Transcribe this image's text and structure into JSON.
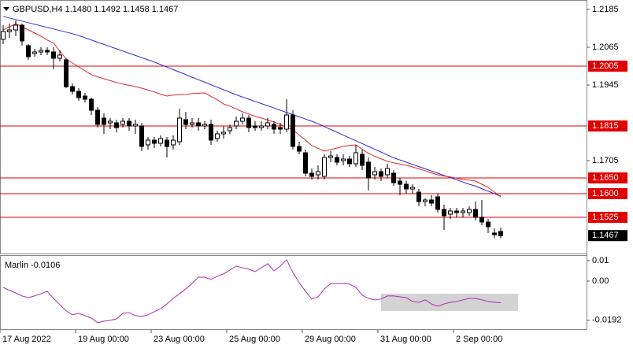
{
  "chart_data": [
    {
      "type": "candlestick",
      "title": "GBPUSD,H4  1.1480 1.1492 1.1458 1.1467",
      "categories": [
        "17 Aug 2022",
        null,
        null,
        null,
        null,
        null,
        null,
        null,
        null,
        null,
        null,
        null,
        "19 Aug 00:00",
        null,
        null,
        null,
        null,
        null,
        null,
        null,
        null,
        null,
        null,
        null,
        "23 Aug 00:00",
        null,
        null,
        null,
        null,
        null,
        null,
        null,
        null,
        null,
        null,
        null,
        "25 Aug 00:00",
        null,
        null,
        null,
        null,
        null,
        null,
        null,
        null,
        null,
        null,
        null,
        "29 Aug 00:00",
        null,
        null,
        null,
        null,
        null,
        null,
        null,
        null,
        null,
        null,
        null,
        "31 Aug 00:00",
        null,
        null,
        null,
        null,
        null,
        null,
        null,
        null,
        null,
        null,
        null,
        "2 Sep 00:00",
        null,
        null,
        null,
        null,
        null,
        null,
        null
      ],
      "open": [
        1.209,
        1.2115,
        1.212,
        1.2135,
        1.207,
        1.2045,
        1.205,
        1.2055,
        1.205,
        1.203,
        1.2025,
        1.194,
        1.1925,
        1.191,
        1.19,
        1.1865,
        1.184,
        1.1825,
        1.1825,
        1.182,
        1.183,
        1.1815,
        1.1815,
        1.1755,
        1.177,
        1.176,
        1.177,
        1.1755,
        1.1765,
        1.1835,
        1.182,
        1.1825,
        1.1815,
        1.182,
        1.1775,
        1.179,
        1.18,
        1.1815,
        1.183,
        1.184,
        1.1815,
        1.181,
        1.1815,
        1.182,
        1.181,
        1.1805,
        1.185,
        1.175,
        1.173,
        1.1665,
        1.166,
        1.1655,
        1.1715,
        1.1715,
        1.1705,
        1.171,
        1.1695,
        1.1725,
        1.17,
        1.166,
        1.167,
        1.166,
        1.1665,
        1.164,
        1.163,
        1.1615,
        1.1605,
        1.1575,
        1.158,
        1.159,
        1.155,
        1.1535,
        1.1545,
        1.154,
        1.154,
        1.155,
        1.1525,
        1.151,
        1.1475,
        1.148
      ],
      "high": [
        1.2135,
        1.214,
        1.215,
        1.214,
        1.2075,
        1.206,
        1.2065,
        1.2065,
        1.2065,
        1.2055,
        1.203,
        1.195,
        1.1935,
        1.192,
        1.1905,
        1.1875,
        1.1855,
        1.184,
        1.1835,
        1.184,
        1.184,
        1.1835,
        1.1825,
        1.178,
        1.178,
        1.1785,
        1.178,
        1.1785,
        1.187,
        1.186,
        1.184,
        1.184,
        1.183,
        1.1835,
        1.18,
        1.1815,
        1.182,
        1.1845,
        1.1855,
        1.185,
        1.183,
        1.183,
        1.184,
        1.183,
        1.1825,
        1.19,
        1.1865,
        1.1765,
        1.174,
        1.168,
        1.169,
        1.1725,
        1.1735,
        1.1725,
        1.1725,
        1.172,
        1.1755,
        1.174,
        1.1715,
        1.1685,
        1.168,
        1.1695,
        1.1675,
        1.165,
        1.164,
        1.163,
        1.1615,
        1.1585,
        1.1595,
        1.16,
        1.1565,
        1.1555,
        1.1555,
        1.1555,
        1.156,
        1.1575,
        1.158,
        1.152,
        1.149,
        1.1492
      ],
      "low": [
        1.2075,
        1.2095,
        1.21,
        1.207,
        1.2025,
        1.2035,
        1.204,
        1.204,
        1.1995,
        1.202,
        1.1935,
        1.1915,
        1.1895,
        1.189,
        1.185,
        1.181,
        1.179,
        1.1805,
        1.1795,
        1.181,
        1.18,
        1.179,
        1.1735,
        1.174,
        1.1745,
        1.175,
        1.1715,
        1.174,
        1.1755,
        1.1805,
        1.181,
        1.18,
        1.1805,
        1.1755,
        1.1765,
        1.1775,
        1.179,
        1.1805,
        1.182,
        1.1795,
        1.18,
        1.18,
        1.1805,
        1.179,
        1.179,
        1.1795,
        1.174,
        1.1725,
        1.1655,
        1.1645,
        1.1645,
        1.1645,
        1.17,
        1.169,
        1.169,
        1.1685,
        1.1685,
        1.1675,
        1.161,
        1.1645,
        1.164,
        1.165,
        1.1625,
        1.1595,
        1.16,
        1.16,
        1.156,
        1.156,
        1.156,
        1.154,
        1.1485,
        1.152,
        1.1525,
        1.1525,
        1.153,
        1.1515,
        1.15,
        1.1475,
        1.146,
        1.1458
      ],
      "close": [
        1.2115,
        1.212,
        1.2135,
        1.2085,
        1.2035,
        1.205,
        1.2055,
        1.205,
        1.203,
        1.204,
        1.194,
        1.1925,
        1.1905,
        1.19,
        1.1865,
        1.182,
        1.182,
        1.183,
        1.181,
        1.183,
        1.1815,
        1.182,
        1.175,
        1.177,
        1.176,
        1.1775,
        1.175,
        1.177,
        1.184,
        1.182,
        1.1825,
        1.1815,
        1.182,
        1.177,
        1.179,
        1.1795,
        1.181,
        1.183,
        1.184,
        1.181,
        1.181,
        1.1815,
        1.1825,
        1.1805,
        1.1805,
        1.185,
        1.175,
        1.1735,
        1.1665,
        1.1655,
        1.167,
        1.1715,
        1.172,
        1.17,
        1.171,
        1.1695,
        1.173,
        1.169,
        1.165,
        1.167,
        1.1655,
        1.168,
        1.1635,
        1.163,
        1.1615,
        1.162,
        1.1575,
        1.158,
        1.157,
        1.155,
        1.153,
        1.1545,
        1.154,
        1.1545,
        1.155,
        1.1525,
        1.151,
        1.1495,
        1.147,
        1.1467
      ],
      "series": [
        {
          "color": "#2a2ad6",
          "values": [
            1.2163,
            1.2158,
            1.2153,
            1.2148,
            1.2143,
            1.2138,
            1.2133,
            1.2128,
            1.2123,
            1.2118,
            1.2113,
            1.2108,
            1.2102,
            1.2095,
            1.2088,
            1.2081,
            1.2074,
            1.2067,
            1.206,
            1.2053,
            1.2046,
            1.2039,
            1.2032,
            1.2025,
            1.2018,
            1.201,
            1.2002,
            1.1994,
            1.1986,
            1.1978,
            1.197,
            1.1962,
            1.1954,
            1.1946,
            1.1938,
            1.193,
            1.1922,
            1.1914,
            1.1907,
            1.19,
            1.1893,
            1.1886,
            1.1879,
            1.1872,
            1.1865,
            1.1858,
            1.1851,
            1.1844,
            1.1837,
            1.183,
            1.1822,
            1.1813,
            1.1804,
            1.1795,
            1.1786,
            1.1777,
            1.1768,
            1.1759,
            1.175,
            1.1741,
            1.1732,
            1.1723,
            1.1714,
            1.1707,
            1.17,
            1.1693,
            1.1686,
            1.1679,
            1.1672,
            1.1665,
            1.1658,
            1.1651,
            1.1644,
            1.1637,
            1.163,
            1.1624,
            1.1616,
            1.1608,
            1.16,
            1.1592
          ]
        },
        {
          "color": "#e02828",
          "values": [
            1.212,
            1.213,
            1.214,
            1.213,
            1.212,
            1.211,
            1.21,
            1.2088,
            1.2078,
            1.2053,
            1.2028,
            1.2015,
            1.2003,
            1.199,
            1.1978,
            1.1971,
            1.1965,
            1.1959,
            1.1953,
            1.1948,
            1.1944,
            1.194,
            1.1935,
            1.1929,
            1.1923,
            1.1916,
            1.191,
            1.1913,
            1.1914,
            1.1915,
            1.1918,
            1.1919,
            1.192,
            1.1909,
            1.1898,
            1.1885,
            1.1878,
            1.1869,
            1.186,
            1.1853,
            1.1846,
            1.184,
            1.1834,
            1.1828,
            1.182,
            1.1811,
            1.1803,
            1.1786,
            1.177,
            1.1753,
            1.1744,
            1.1735,
            1.174,
            1.1745,
            1.175,
            1.1753,
            1.1755,
            1.1741,
            1.1728,
            1.1719,
            1.1711,
            1.1703,
            1.1698,
            1.1694,
            1.169,
            1.1685,
            1.1679,
            1.1673,
            1.1666,
            1.166,
            1.1656,
            1.1653,
            1.1649,
            1.1645,
            1.1643,
            1.164,
            1.163,
            1.162,
            1.1605,
            1.159
          ]
        }
      ],
      "levels": [
        1.2005,
        1.1815,
        {
          "value": 1.165,
          "label": "1.1650"
        },
        {
          "value": 1.16,
          "label": "1.1600"
        },
        1.1525
      ],
      "level_color": "#e00000",
      "ylim": [
        1.141,
        1.2215
      ],
      "yticks": [
        1.2185,
        1.2065,
        1.1945,
        1.1705
      ]
    },
    {
      "type": "line",
      "title": "Marlin -0.0106",
      "color": "#b02cb0",
      "values": [
        -0.0031,
        -0.0046,
        -0.0058,
        -0.0073,
        -0.0081,
        -0.0073,
        -0.0062,
        -0.005,
        -0.0085,
        -0.0115,
        -0.0146,
        -0.0165,
        -0.0158,
        -0.0169,
        -0.0181,
        -0.0204,
        -0.0196,
        -0.0192,
        -0.0185,
        -0.0158,
        -0.0154,
        -0.0169,
        -0.0173,
        -0.0165,
        -0.015,
        -0.0135,
        -0.0112,
        -0.0085,
        -0.0062,
        -0.0038,
        -0.0012,
        0.0019,
        0.0019,
        0.0008,
        0.0023,
        0.0035,
        0.0054,
        0.0073,
        0.0065,
        0.0058,
        0.0046,
        0.0065,
        0.0085,
        0.005,
        0.0073,
        0.0104,
        0.0042,
        -0.0008,
        -0.005,
        -0.0088,
        -0.0077,
        -0.0038,
        -0.0012,
        -0.0012,
        -0.0012,
        -0.0015,
        -0.0031,
        -0.0069,
        -0.0085,
        -0.0092,
        -0.0088,
        -0.0073,
        -0.0073,
        -0.0077,
        -0.0081,
        -0.01,
        -0.0104,
        -0.0092,
        -0.0112,
        -0.0123,
        -0.0112,
        -0.0104,
        -0.01,
        -0.0092,
        -0.0085,
        -0.0085,
        -0.0092,
        -0.01,
        -0.0104,
        -0.0106
      ],
      "ylim": [
        -0.0235,
        0.0123
      ],
      "yticks": [
        0.01,
        {
          "value": 0,
          "label": "0.00"
        },
        -0.0192
      ]
    }
  ]
}
